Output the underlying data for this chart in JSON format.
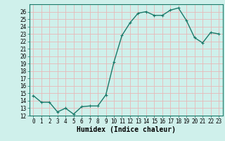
{
  "x": [
    0,
    1,
    2,
    3,
    4,
    5,
    6,
    7,
    8,
    9,
    10,
    11,
    12,
    13,
    14,
    15,
    16,
    17,
    18,
    19,
    20,
    21,
    22,
    23
  ],
  "y": [
    14.7,
    13.8,
    13.8,
    12.5,
    13.0,
    12.2,
    13.2,
    13.3,
    13.3,
    14.8,
    19.2,
    22.8,
    24.5,
    25.8,
    26.0,
    25.5,
    25.5,
    26.2,
    26.5,
    24.8,
    22.5,
    21.8,
    23.2,
    23.0
  ],
  "line_color": "#1a7a6a",
  "marker": "+",
  "marker_size": 3,
  "bg_color": "#cff0eb",
  "grid_color": "#e8b8b8",
  "xlabel": "Humidex (Indice chaleur)",
  "ylim": [
    12,
    27
  ],
  "xlim_min": -0.5,
  "xlim_max": 23.5,
  "yticks": [
    12,
    13,
    14,
    15,
    16,
    17,
    18,
    19,
    20,
    21,
    22,
    23,
    24,
    25,
    26
  ],
  "xticks": [
    0,
    1,
    2,
    3,
    4,
    5,
    6,
    7,
    8,
    9,
    10,
    11,
    12,
    13,
    14,
    15,
    16,
    17,
    18,
    19,
    20,
    21,
    22,
    23
  ],
  "xlabel_fontsize": 7,
  "tick_fontsize": 5.5,
  "line_width": 1.0,
  "marker_edge_width": 0.8
}
